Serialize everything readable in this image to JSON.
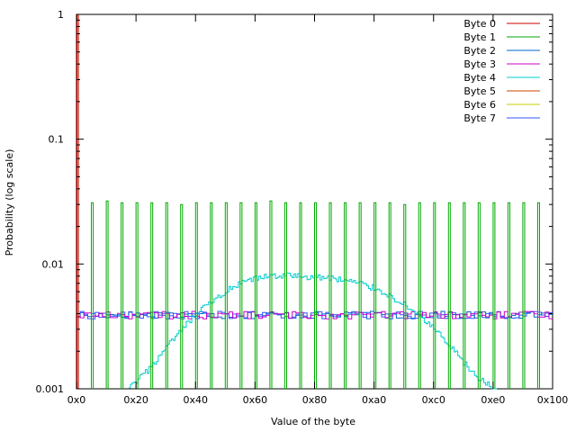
{
  "chart_data": {
    "type": "line",
    "style": "histogram-steps",
    "xlabel": "Value of the byte",
    "ylabel": "Probability (log scale)",
    "xlim": [
      0,
      256
    ],
    "ylim": [
      0.001,
      1
    ],
    "yscale": "log",
    "grid": false,
    "legend_position": "top-right",
    "x_ticks": [
      {
        "value": 0,
        "label": "0x0"
      },
      {
        "value": 32,
        "label": "0x20"
      },
      {
        "value": 64,
        "label": "0x40"
      },
      {
        "value": 96,
        "label": "0x60"
      },
      {
        "value": 128,
        "label": "0x80"
      },
      {
        "value": 160,
        "label": "0xa0"
      },
      {
        "value": 192,
        "label": "0xc0"
      },
      {
        "value": 224,
        "label": "0xe0"
      },
      {
        "value": 256,
        "label": "0x100"
      }
    ],
    "y_ticks": [
      {
        "value": 1,
        "label": "1"
      },
      {
        "value": 0.1,
        "label": "0.1"
      },
      {
        "value": 0.01,
        "label": "0.01"
      },
      {
        "value": 0.001,
        "label": "0.001"
      }
    ],
    "series": [
      {
        "name": "Byte 0",
        "color": "#cc0000",
        "description": "Byte 0 is always 0x00",
        "points": [
          [
            0,
            1.0
          ]
        ]
      },
      {
        "name": "Byte 1",
        "color": "#00aa00",
        "description": "Spikes every 8 values, rest near zero",
        "spike_start": 8,
        "spike_step": 8,
        "spike_values": [
          0.031,
          0.032,
          0.031,
          0.031,
          0.031,
          0.031,
          0.03,
          0.031,
          0.031,
          0.031,
          0.031,
          0.031,
          0.032,
          0.031,
          0.031,
          0.031,
          0.031,
          0.031,
          0.031,
          0.031,
          0.031,
          0.03,
          0.031,
          0.031,
          0.031,
          0.031,
          0.031,
          0.031,
          0.031,
          0.031,
          0.031
        ]
      },
      {
        "name": "Byte 2",
        "color": "#0066cc",
        "description": "Approximately uniform",
        "mean": 0.0039
      },
      {
        "name": "Byte 3",
        "color": "#cc00cc",
        "description": "Approximately uniform",
        "mean": 0.0039
      },
      {
        "name": "Byte 4",
        "color": "#00cccc",
        "description": "Bell-shaped distribution centered near 0x80",
        "x": [
          28,
          32,
          36,
          40,
          44,
          48,
          52,
          56,
          60,
          64,
          68,
          72,
          76,
          80,
          84,
          88,
          92,
          96,
          100,
          104,
          108,
          112,
          116,
          120,
          124,
          128,
          132,
          136,
          140,
          144,
          148,
          152,
          156,
          160,
          164,
          168,
          172,
          176,
          180,
          184,
          188,
          192,
          196,
          200,
          204,
          208,
          212,
          216,
          220,
          224,
          226
        ],
        "values": [
          0.001,
          0.00115,
          0.0013,
          0.0015,
          0.0018,
          0.0021,
          0.0025,
          0.0029,
          0.0034,
          0.0039,
          0.0044,
          0.0049,
          0.0054,
          0.006,
          0.0065,
          0.0069,
          0.0073,
          0.0076,
          0.0078,
          0.008,
          0.0081,
          0.0081,
          0.008,
          0.008,
          0.0079,
          0.0078,
          0.0078,
          0.0077,
          0.0076,
          0.0074,
          0.0072,
          0.007,
          0.0067,
          0.0064,
          0.006,
          0.0056,
          0.0051,
          0.0047,
          0.0043,
          0.0039,
          0.0034,
          0.003,
          0.0026,
          0.0022,
          0.0019,
          0.0016,
          0.0014,
          0.0012,
          0.0011,
          0.001,
          0.001
        ]
      },
      {
        "name": "Byte 5",
        "color": "#cc4400",
        "description": "Overlaps Byte 0 near 0x0",
        "points": [
          [
            0,
            1.0
          ]
        ]
      },
      {
        "name": "Byte 6",
        "color": "#cccc00",
        "description": "Overlaps Byte 0 near 0x0",
        "points": [
          [
            0,
            1.0
          ]
        ]
      },
      {
        "name": "Byte 7",
        "color": "#3355ff",
        "description": "Approximately uniform",
        "mean": 0.0039
      }
    ]
  }
}
